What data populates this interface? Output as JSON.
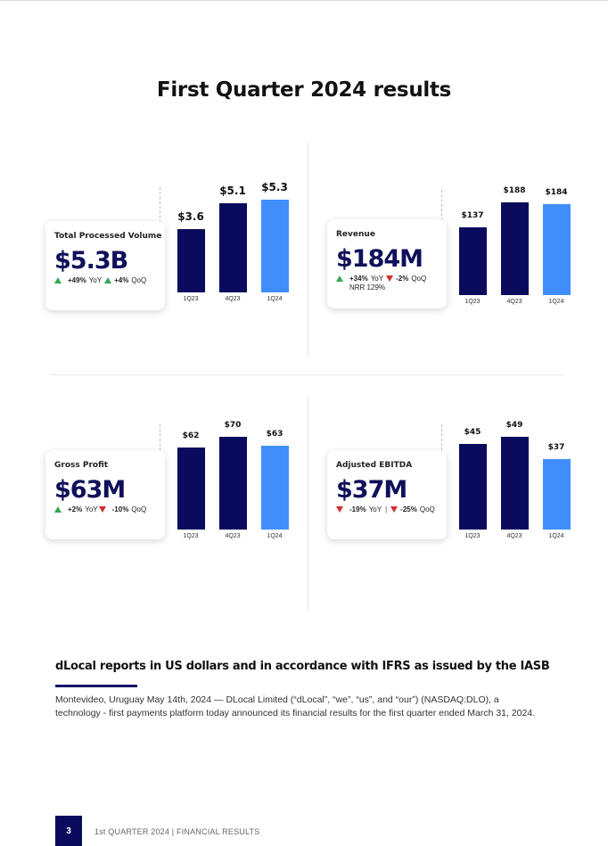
{
  "title": "First Quarter 2024 results",
  "kpis": [
    {
      "label": "Total Processed Volume",
      "value": "$5.3B",
      "yoy": {
        "direction": "up",
        "value": "+49%",
        "label": "YoY"
      },
      "qoq": {
        "direction": "up",
        "value": "+4%",
        "label": "QoQ"
      },
      "extra": ""
    },
    {
      "label": "Revenue",
      "value": "$184M",
      "yoy": {
        "direction": "up",
        "value": "+34%",
        "label": "YoY"
      },
      "qoq": {
        "direction": "down",
        "value": "-2%",
        "label": "QoQ"
      },
      "extra": "NRR 129%"
    },
    {
      "label": "Gross Profit",
      "value": "$63M",
      "yoy": {
        "direction": "up",
        "value": "+2%",
        "label": "YoY"
      },
      "qoq": {
        "direction": "down",
        "value": "-10%",
        "label": "QoQ"
      },
      "extra": ""
    },
    {
      "label": "Adjusted EBITDA",
      "value": "$37M",
      "yoy": {
        "direction": "down",
        "value": "-19%",
        "label": "YoY"
      },
      "qoq": {
        "direction": "down",
        "value": "-25%",
        "label": "QoQ"
      },
      "extra": ""
    }
  ],
  "colors": {
    "dark_bar": "#0b0b5e",
    "light_bar": "#3f8efc",
    "up": "#34a853",
    "down": "#d32f2f"
  },
  "chart_data": [
    {
      "type": "bar",
      "title": "Total Processed Volume",
      "categories": [
        "1Q23",
        "4Q23",
        "1Q24"
      ],
      "values": [
        3.6,
        5.1,
        5.3
      ],
      "labels": [
        "$3.6",
        "$5.1",
        "$5.3"
      ],
      "unit": "$B"
    },
    {
      "type": "bar",
      "title": "Revenue",
      "categories": [
        "1Q23",
        "4Q23",
        "1Q24"
      ],
      "values": [
        137,
        188,
        184
      ],
      "labels": [
        "$137",
        "$188",
        "$184"
      ],
      "unit": "$M"
    },
    {
      "type": "bar",
      "title": "Gross Profit",
      "categories": [
        "1Q23",
        "4Q23",
        "1Q24"
      ],
      "values": [
        62,
        70,
        63
      ],
      "labels": [
        "$62",
        "$70",
        "$63"
      ],
      "unit": "$M"
    },
    {
      "type": "bar",
      "title": "Adjusted EBITDA",
      "categories": [
        "1Q23",
        "4Q23",
        "1Q24"
      ],
      "values": [
        45,
        49,
        37
      ],
      "labels": [
        "$45",
        "$49",
        "$37"
      ],
      "unit": "$M"
    }
  ],
  "report": {
    "heading": "dLocal reports in US dollars and in accordance with IFRS as issued by the IASB",
    "intro": "Montevideo, Uruguay May 14th, 2024 — DLocal Limited (“dLocal”, “we”, “us”, and “our”) (NASDAQ:DLO), a technology - first payments platform today announced its financial results for the first quarter ended March 31, 2024."
  },
  "footer": {
    "page_number": "3",
    "text": "1st QUARTER 2024 | FINANCIAL RESULTS"
  }
}
